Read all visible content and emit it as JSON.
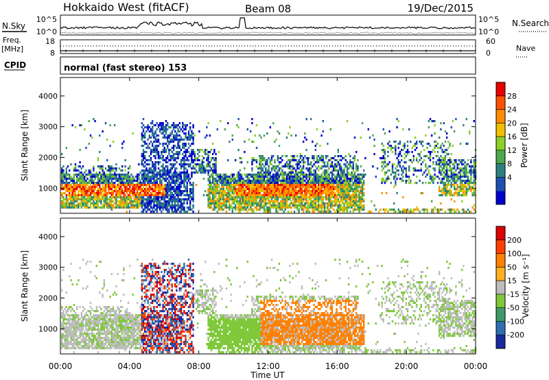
{
  "header": {
    "radar": "Hokkaido West (fitACF)",
    "beam": "Beam 08",
    "date": "19/Dec/2015"
  },
  "top_panel": {
    "nsky_label": "N.Sky",
    "nsearch_label": "N.Search",
    "noise_ticks": [
      "10^5",
      "10^0"
    ],
    "freq_label_line1": "Freq.",
    "freq_label_line2": "[MHz]",
    "freq_ticks": [
      "18",
      "8"
    ],
    "nave_label": "Nave",
    "nave_ticks": [
      "60",
      "0"
    ],
    "cpid_label": "CPID",
    "cpid_text": "normal (fast stereo) 153"
  },
  "chart_data": [
    {
      "type": "heatmap",
      "name": "power",
      "ylabel": "Slant Range [km]",
      "xlabel": "",
      "yticks": [
        1000,
        2000,
        3000,
        4000
      ],
      "ylim": [
        180,
        4600
      ],
      "xlim_hours": [
        0,
        24
      ],
      "colorbar": {
        "label": "Power [dB]",
        "ticks": [
          "28",
          "24",
          "20",
          "16",
          "12",
          "8",
          "4"
        ],
        "colors": [
          "#0000cc",
          "#1f4fb0",
          "#2e7f7f",
          "#4ea64e",
          "#8ccf2a",
          "#f0c000",
          "#ff8c00",
          "#ff5000",
          "#e80000"
        ]
      }
    },
    {
      "type": "heatmap",
      "name": "velocity",
      "ylabel": "Slant Range [km]",
      "xlabel": "Time UT",
      "yticks": [
        1000,
        2000,
        3000,
        4000
      ],
      "ylim": [
        180,
        4600
      ],
      "xlim_hours": [
        0,
        24
      ],
      "xticks": [
        "00:00",
        "04:00",
        "08:00",
        "12:00",
        "16:00",
        "20:00",
        "00:00"
      ],
      "colorbar": {
        "label": "Velocity [m s⁻¹]",
        "ticks": [
          "200",
          "100",
          "50",
          "15",
          "-15",
          "-50",
          "-100",
          "-200"
        ],
        "colors": [
          "#1a2a9e",
          "#2e6db0",
          "#3f9a6a",
          "#7ec83a",
          "#bdbdbd",
          "#ffb020",
          "#ff8000",
          "#ff4000",
          "#dd0000"
        ]
      }
    }
  ]
}
